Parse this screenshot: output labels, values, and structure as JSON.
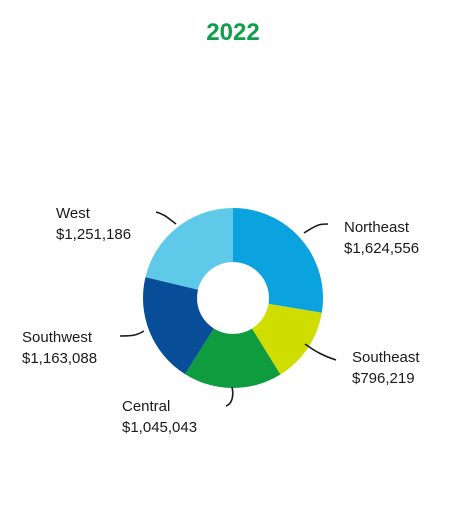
{
  "chart_data": {
    "type": "pie",
    "variant": "donut",
    "title": "2022",
    "title_color": "#0E9F48",
    "slices": [
      {
        "name": "Northeast",
        "value": 1624556,
        "value_label": "$1,624,556",
        "color": "#0AA3DF"
      },
      {
        "name": "Southeast",
        "value": 796219,
        "value_label": "$796,219",
        "color": "#CFDE00"
      },
      {
        "name": "Central",
        "value": 1045043,
        "value_label": "$1,045,043",
        "color": "#0E9C3F"
      },
      {
        "name": "Southwest",
        "value": 1163088,
        "value_label": "$1,163,088",
        "color": "#074D97"
      },
      {
        "name": "West",
        "value": 1251186,
        "value_label": "$1,251,186",
        "color": "#5FC9EA"
      }
    ],
    "legend": "none"
  }
}
